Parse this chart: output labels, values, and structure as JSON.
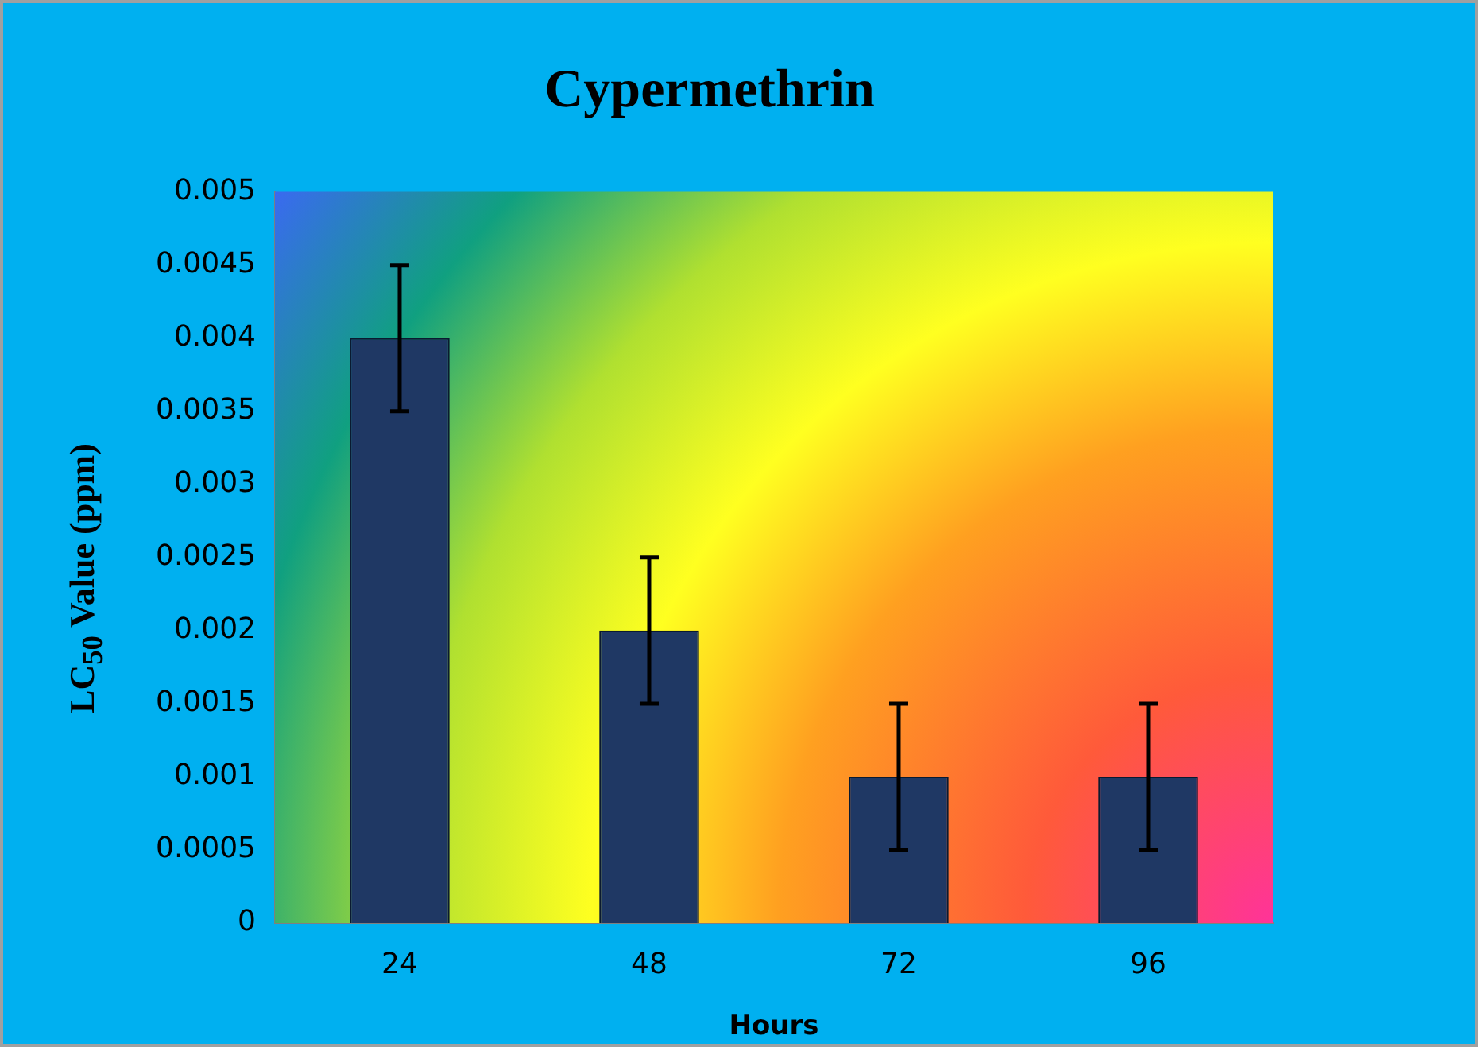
{
  "chart_data": {
    "type": "bar",
    "title": "Cypermethrin",
    "xlabel": "Hours",
    "ylabel": "LC$_{50}$ Value (ppm)",
    "categories": [
      "24",
      "48",
      "72",
      "96"
    ],
    "values": [
      0.004,
      0.002,
      0.001,
      0.001
    ],
    "errors": [
      0.0005,
      0.0005,
      0.0005,
      0.0005
    ],
    "color": "#1f3864",
    "ylim": [
      0,
      0.005
    ],
    "yticks": [
      0,
      0.0005,
      0.001,
      0.0015,
      0.002,
      0.0025,
      0.003,
      0.0035,
      0.004,
      0.0045,
      0.005
    ],
    "grid": false,
    "legend": false
  }
}
